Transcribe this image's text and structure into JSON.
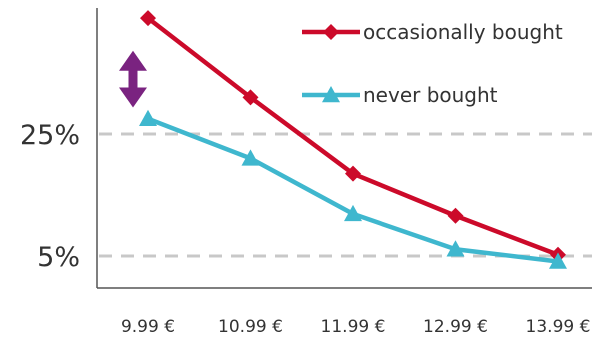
{
  "chart_data": {
    "type": "line",
    "categories": [
      "9.99 €",
      "10.99 €",
      "11.99 €",
      "12.99 €",
      "13.99 €"
    ],
    "series": [
      {
        "name": "occasionally bought",
        "values": [
          44,
          31,
          18.5,
          11.6,
          5.2
        ],
        "color": "#cc0a2a",
        "marker": "diamond"
      },
      {
        "name": "never bought",
        "values": [
          27.5,
          21,
          11.9,
          6.1,
          4.1
        ],
        "color": "#3fb7ce",
        "marker": "triangle"
      }
    ],
    "yticks": [
      {
        "value": 25,
        "label": "25%"
      },
      {
        "value": 5,
        "label": "5%"
      }
    ],
    "title": "",
    "xlabel": "",
    "ylabel": "",
    "ylim": [
      -1.5,
      48
    ],
    "grid": "horizontal dashed at y ticks",
    "legend": "top-right",
    "annotation": {
      "type": "double-arrow",
      "at_category": "9.99 €",
      "from": 30,
      "to": 38,
      "color": "#7a2380"
    },
    "colors": {
      "axis": "#555555",
      "grid": "#c8c8c8",
      "text": "#333333"
    }
  }
}
